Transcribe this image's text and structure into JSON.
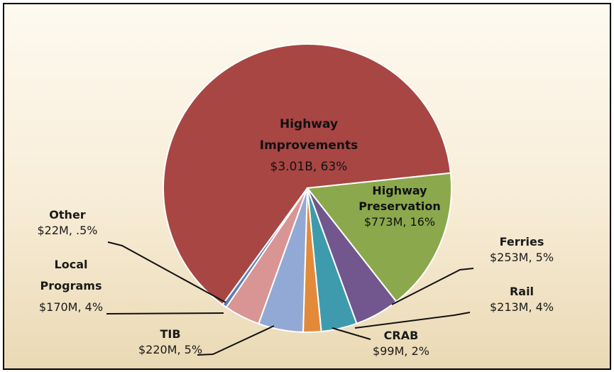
{
  "chart_data": {
    "type": "pie",
    "categories": [
      "Highway Improvements",
      "Highway Preservation",
      "Ferries",
      "Rail",
      "CRAB",
      "TIB",
      "Local Programs",
      "Other"
    ],
    "values": [
      63,
      16,
      5,
      4,
      2,
      5,
      4,
      0.5
    ],
    "value_labels": [
      "$3.01B, 63%",
      "$773M, 16%",
      "$253M, 5%",
      "$213M, 4%",
      "$99M, 2%",
      "$220M, 5%",
      "$170M, 4%",
      "$22M, .5%"
    ],
    "colors": [
      "#a84644",
      "#8ba84c",
      "#72578f",
      "#3e9bae",
      "#e28a3a",
      "#93a9d5",
      "#d99593",
      "#5a7fb6"
    ]
  }
}
